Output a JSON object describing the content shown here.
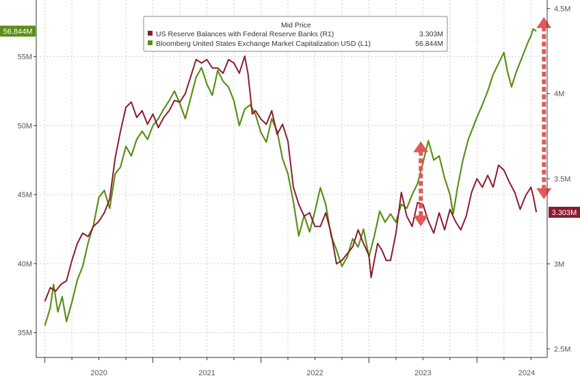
{
  "chart_data": {
    "type": "line",
    "title": "Mid Price",
    "x_labels": [
      "2020",
      "2021",
      "2022",
      "2023",
      "2024"
    ],
    "x_range": [
      2019.92,
      2024.45
    ],
    "y_left": {
      "ticks": [
        "35M",
        "40M",
        "45M",
        "50M",
        "55M"
      ],
      "range": [
        33.2,
        59.1
      ]
    },
    "y_right": {
      "ticks": [
        "2.5M",
        "3M",
        "3.5M",
        "4M",
        "4.5M"
      ],
      "range": [
        2.45,
        4.55
      ]
    },
    "grid": true,
    "legend_position": "top-center",
    "series": [
      {
        "name": "US Reserve Balances with Federal Reserve Banks  (R1)",
        "last_value": "3.303M",
        "axis": "right",
        "color": "#8b1a2e",
        "points": [
          [
            2020.0,
            2.78
          ],
          [
            2020.05,
            2.86
          ],
          [
            2020.1,
            2.84
          ],
          [
            2020.15,
            2.88
          ],
          [
            2020.2,
            2.9
          ],
          [
            2020.25,
            3.02
          ],
          [
            2020.3,
            3.12
          ],
          [
            2020.35,
            3.18
          ],
          [
            2020.4,
            3.16
          ],
          [
            2020.45,
            3.22
          ],
          [
            2020.5,
            3.25
          ],
          [
            2020.55,
            3.3
          ],
          [
            2020.6,
            3.38
          ],
          [
            2020.65,
            3.62
          ],
          [
            2020.7,
            3.78
          ],
          [
            2020.75,
            3.92
          ],
          [
            2020.8,
            3.95
          ],
          [
            2020.85,
            3.86
          ],
          [
            2020.9,
            3.9
          ],
          [
            2020.95,
            3.82
          ],
          [
            2021.0,
            3.88
          ],
          [
            2021.05,
            3.8
          ],
          [
            2021.1,
            3.86
          ],
          [
            2021.15,
            3.9
          ],
          [
            2021.2,
            3.96
          ],
          [
            2021.25,
            3.95
          ],
          [
            2021.3,
            4.0
          ],
          [
            2021.35,
            4.1
          ],
          [
            2021.4,
            4.2
          ],
          [
            2021.45,
            4.18
          ],
          [
            2021.5,
            4.2
          ],
          [
            2021.55,
            4.15
          ],
          [
            2021.6,
            4.15
          ],
          [
            2021.65,
            4.12
          ],
          [
            2021.7,
            4.2
          ],
          [
            2021.75,
            4.18
          ],
          [
            2021.8,
            4.12
          ],
          [
            2021.85,
            4.22
          ],
          [
            2021.88,
            4.12
          ],
          [
            2021.92,
            3.88
          ],
          [
            2021.95,
            3.9
          ],
          [
            2022.0,
            3.85
          ],
          [
            2022.05,
            3.82
          ],
          [
            2022.1,
            3.9
          ],
          [
            2022.15,
            3.76
          ],
          [
            2022.2,
            3.82
          ],
          [
            2022.25,
            3.72
          ],
          [
            2022.3,
            3.45
          ],
          [
            2022.35,
            3.35
          ],
          [
            2022.4,
            3.28
          ],
          [
            2022.45,
            3.3
          ],
          [
            2022.5,
            3.22
          ],
          [
            2022.55,
            3.22
          ],
          [
            2022.6,
            3.3
          ],
          [
            2022.65,
            3.18
          ],
          [
            2022.7,
            3.0
          ],
          [
            2022.75,
            3.02
          ],
          [
            2022.8,
            3.06
          ],
          [
            2022.85,
            3.1
          ],
          [
            2022.9,
            3.2
          ],
          [
            2022.95,
            3.12
          ],
          [
            2023.0,
            3.05
          ],
          [
            2023.02,
            2.92
          ],
          [
            2023.05,
            3.02
          ],
          [
            2023.08,
            3.12
          ],
          [
            2023.12,
            3.08
          ],
          [
            2023.16,
            3.02
          ],
          [
            2023.2,
            3.02
          ],
          [
            2023.25,
            3.18
          ],
          [
            2023.3,
            3.42
          ],
          [
            2023.35,
            3.28
          ],
          [
            2023.4,
            3.22
          ],
          [
            2023.45,
            3.36
          ],
          [
            2023.5,
            3.35
          ],
          [
            2023.55,
            3.25
          ],
          [
            2023.6,
            3.18
          ],
          [
            2023.65,
            3.3
          ],
          [
            2023.7,
            3.2
          ],
          [
            2023.75,
            3.32
          ],
          [
            2023.8,
            3.25
          ],
          [
            2023.85,
            3.2
          ],
          [
            2023.9,
            3.28
          ],
          [
            2023.95,
            3.42
          ],
          [
            2024.0,
            3.5
          ],
          [
            2024.05,
            3.45
          ],
          [
            2024.1,
            3.52
          ],
          [
            2024.15,
            3.45
          ],
          [
            2024.2,
            3.58
          ],
          [
            2024.25,
            3.55
          ],
          [
            2024.3,
            3.48
          ],
          [
            2024.35,
            3.42
          ],
          [
            2024.4,
            3.32
          ],
          [
            2024.45,
            3.4
          ],
          [
            2024.5,
            3.45
          ],
          [
            2024.52,
            3.4
          ],
          [
            2024.55,
            3.303
          ]
        ]
      },
      {
        "name": "Bloomberg United States Exchange Market Capitalization USD  (L1)",
        "last_value": "56.844M",
        "axis": "left",
        "color": "#5a8f16",
        "points": [
          [
            2020.0,
            35.5
          ],
          [
            2020.05,
            36.8
          ],
          [
            2020.08,
            38.5
          ],
          [
            2020.12,
            36.5
          ],
          [
            2020.16,
            37.6
          ],
          [
            2020.2,
            35.8
          ],
          [
            2020.25,
            37.2
          ],
          [
            2020.3,
            38.8
          ],
          [
            2020.35,
            39.8
          ],
          [
            2020.4,
            41.5
          ],
          [
            2020.45,
            42.8
          ],
          [
            2020.5,
            44.8
          ],
          [
            2020.55,
            45.3
          ],
          [
            2020.6,
            44.0
          ],
          [
            2020.65,
            46.5
          ],
          [
            2020.7,
            47.0
          ],
          [
            2020.75,
            48.5
          ],
          [
            2020.8,
            47.8
          ],
          [
            2020.85,
            49.0
          ],
          [
            2020.9,
            49.6
          ],
          [
            2020.95,
            49.0
          ],
          [
            2021.0,
            50.0
          ],
          [
            2021.05,
            50.5
          ],
          [
            2021.1,
            51.2
          ],
          [
            2021.15,
            51.8
          ],
          [
            2021.2,
            52.5
          ],
          [
            2021.25,
            51.6
          ],
          [
            2021.3,
            50.5
          ],
          [
            2021.35,
            52.0
          ],
          [
            2021.4,
            53.5
          ],
          [
            2021.45,
            54.2
          ],
          [
            2021.5,
            53.0
          ],
          [
            2021.55,
            52.2
          ],
          [
            2021.6,
            54.0
          ],
          [
            2021.65,
            53.2
          ],
          [
            2021.7,
            52.8
          ],
          [
            2021.75,
            51.8
          ],
          [
            2021.8,
            50.0
          ],
          [
            2021.85,
            51.2
          ],
          [
            2021.9,
            51.5
          ],
          [
            2021.95,
            50.8
          ],
          [
            2022.0,
            49.5
          ],
          [
            2022.05,
            48.8
          ],
          [
            2022.1,
            50.5
          ],
          [
            2022.15,
            49.6
          ],
          [
            2022.2,
            47.6
          ],
          [
            2022.25,
            46.5
          ],
          [
            2022.3,
            44.5
          ],
          [
            2022.35,
            42.0
          ],
          [
            2022.4,
            43.5
          ],
          [
            2022.45,
            42.3
          ],
          [
            2022.5,
            43.8
          ],
          [
            2022.55,
            45.5
          ],
          [
            2022.6,
            44.3
          ],
          [
            2022.65,
            42.0
          ],
          [
            2022.7,
            41.0
          ],
          [
            2022.75,
            39.8
          ],
          [
            2022.8,
            40.5
          ],
          [
            2022.85,
            41.8
          ],
          [
            2022.9,
            41.2
          ],
          [
            2022.95,
            42.5
          ],
          [
            2023.0,
            40.5
          ],
          [
            2023.05,
            42.0
          ],
          [
            2023.1,
            43.8
          ],
          [
            2023.15,
            43.0
          ],
          [
            2023.2,
            43.6
          ],
          [
            2023.25,
            43.0
          ],
          [
            2023.3,
            44.3
          ],
          [
            2023.35,
            44.0
          ],
          [
            2023.4,
            45.0
          ],
          [
            2023.45,
            45.8
          ],
          [
            2023.5,
            47.3
          ],
          [
            2023.55,
            48.9
          ],
          [
            2023.6,
            47.5
          ],
          [
            2023.65,
            47.8
          ],
          [
            2023.7,
            46.2
          ],
          [
            2023.75,
            45.0
          ],
          [
            2023.78,
            43.6
          ],
          [
            2023.82,
            45.5
          ],
          [
            2023.87,
            47.5
          ],
          [
            2023.92,
            49.0
          ],
          [
            2023.97,
            50.0
          ],
          [
            2024.0,
            50.6
          ],
          [
            2024.05,
            51.5
          ],
          [
            2024.1,
            52.5
          ],
          [
            2024.15,
            53.7
          ],
          [
            2024.2,
            54.5
          ],
          [
            2024.25,
            55.3
          ],
          [
            2024.28,
            54.0
          ],
          [
            2024.32,
            52.8
          ],
          [
            2024.36,
            53.8
          ],
          [
            2024.42,
            55.0
          ],
          [
            2024.47,
            56.0
          ],
          [
            2024.5,
            56.5
          ],
          [
            2024.52,
            57.0
          ],
          [
            2024.55,
            56.844
          ]
        ]
      }
    ],
    "annotations": [
      {
        "type": "double-arrow",
        "color": "#e05a5a",
        "x": 2023.48,
        "y_from": 3.22,
        "y_to": 3.72,
        "axis": "right"
      },
      {
        "type": "double-arrow",
        "color": "#e05a5a",
        "x": 2024.62,
        "y_from": 3.38,
        "y_to": 4.45,
        "axis": "right"
      }
    ]
  }
}
